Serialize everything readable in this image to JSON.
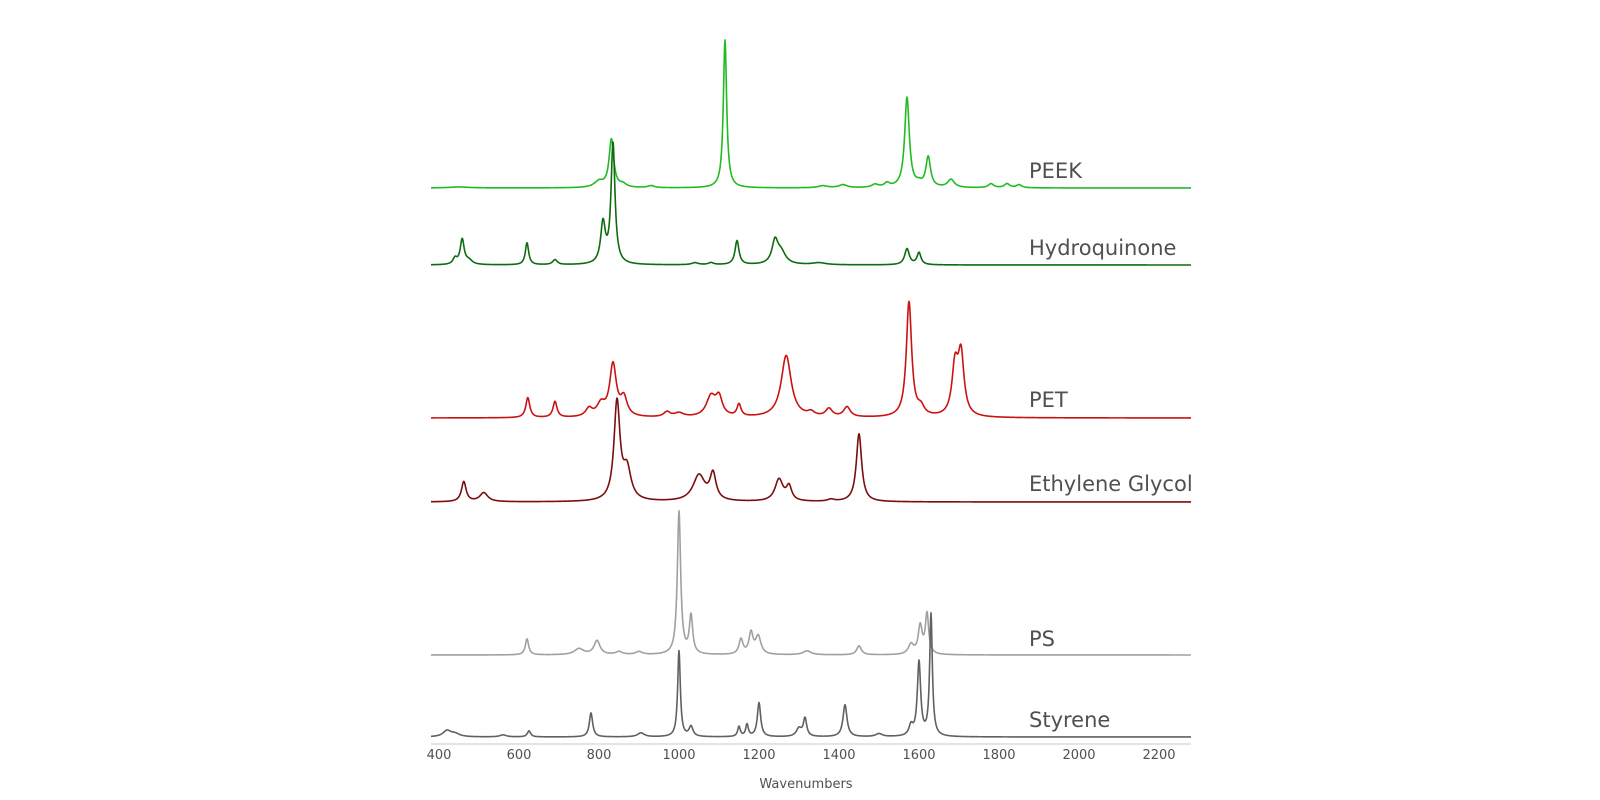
{
  "chart_data": {
    "type": "line",
    "title": "",
    "xlabel": "Wavenumbers",
    "ylabel": "",
    "xlim": [
      380,
      2280
    ],
    "xticks": [
      400,
      600,
      800,
      1000,
      1200,
      1400,
      1600,
      1800,
      2000,
      2200
    ],
    "grid": false,
    "legend": "none",
    "series": [
      {
        "name": "PEEK",
        "color": "#22bb22",
        "peaks": [
          [
            450,
            1,
            30
          ],
          [
            800,
            6,
            14
          ],
          [
            831,
            48,
            7
          ],
          [
            860,
            3,
            10
          ],
          [
            930,
            2,
            10
          ],
          [
            1115,
            148,
            5
          ],
          [
            1360,
            2,
            14
          ],
          [
            1410,
            3,
            12
          ],
          [
            1490,
            3,
            10
          ],
          [
            1520,
            4,
            8
          ],
          [
            1570,
            90,
            7
          ],
          [
            1600,
            3,
            8
          ],
          [
            1623,
            30,
            7
          ],
          [
            1680,
            8,
            10
          ],
          [
            1780,
            4,
            8
          ],
          [
            1820,
            4,
            8
          ],
          [
            1850,
            3,
            8
          ]
        ]
      },
      {
        "name": "Hydroquinone",
        "color": "#0f6b0f",
        "peaks": [
          [
            440,
            6,
            6
          ],
          [
            458,
            25,
            6
          ],
          [
            475,
            4,
            10
          ],
          [
            620,
            22,
            5
          ],
          [
            690,
            5,
            7
          ],
          [
            810,
            40,
            7
          ],
          [
            835,
            120,
            6
          ],
          [
            1040,
            2,
            10
          ],
          [
            1080,
            2,
            8
          ],
          [
            1145,
            24,
            6
          ],
          [
            1240,
            22,
            9
          ],
          [
            1255,
            12,
            14
          ],
          [
            1350,
            2,
            20
          ],
          [
            1570,
            16,
            7
          ],
          [
            1600,
            12,
            6
          ]
        ]
      },
      {
        "name": "PET",
        "color": "#cc1111",
        "peaks": [
          [
            622,
            20,
            6
          ],
          [
            690,
            16,
            6
          ],
          [
            775,
            8,
            10
          ],
          [
            805,
            12,
            12
          ],
          [
            835,
            52,
            10
          ],
          [
            862,
            18,
            10
          ],
          [
            970,
            5,
            10
          ],
          [
            1000,
            4,
            14
          ],
          [
            1080,
            20,
            14
          ],
          [
            1100,
            18,
            10
          ],
          [
            1150,
            12,
            6
          ],
          [
            1268,
            62,
            15
          ],
          [
            1330,
            4,
            10
          ],
          [
            1375,
            8,
            10
          ],
          [
            1420,
            10,
            10
          ],
          [
            1575,
            115,
            8
          ],
          [
            1605,
            8,
            10
          ],
          [
            1690,
            48,
            9
          ],
          [
            1705,
            60,
            9
          ]
        ]
      },
      {
        "name": "Ethylene Glycol",
        "color": "#7a0d0d",
        "peaks": [
          [
            462,
            20,
            7
          ],
          [
            512,
            9,
            12
          ],
          [
            845,
            98,
            9
          ],
          [
            870,
            30,
            12
          ],
          [
            1050,
            26,
            18
          ],
          [
            1085,
            26,
            9
          ],
          [
            1250,
            22,
            12
          ],
          [
            1275,
            14,
            8
          ],
          [
            1380,
            2,
            10
          ],
          [
            1450,
            68,
            8
          ]
        ]
      },
      {
        "name": "PS",
        "color": "#a0a0a0",
        "peaks": [
          [
            620,
            16,
            5
          ],
          [
            750,
            6,
            14
          ],
          [
            795,
            14,
            9
          ],
          [
            850,
            3,
            10
          ],
          [
            900,
            3,
            10
          ],
          [
            1000,
            143,
            5
          ],
          [
            1030,
            38,
            5
          ],
          [
            1155,
            15,
            6
          ],
          [
            1180,
            21,
            6
          ],
          [
            1198,
            18,
            8
          ],
          [
            1320,
            4,
            12
          ],
          [
            1450,
            9,
            7
          ],
          [
            1580,
            10,
            8
          ],
          [
            1603,
            28,
            6
          ],
          [
            1620,
            40,
            5
          ]
        ]
      },
      {
        "name": "Styrene",
        "color": "#606060",
        "peaks": [
          [
            420,
            6,
            12
          ],
          [
            440,
            3,
            14
          ],
          [
            560,
            2,
            10
          ],
          [
            625,
            6,
            5
          ],
          [
            780,
            24,
            5
          ],
          [
            905,
            4,
            10
          ],
          [
            1000,
            86,
            4
          ],
          [
            1030,
            10,
            6
          ],
          [
            1150,
            10,
            4
          ],
          [
            1170,
            12,
            4
          ],
          [
            1200,
            34,
            5
          ],
          [
            1300,
            8,
            8
          ],
          [
            1315,
            18,
            5
          ],
          [
            1415,
            32,
            6
          ],
          [
            1500,
            3,
            10
          ],
          [
            1580,
            10,
            6
          ],
          [
            1600,
            74,
            5
          ],
          [
            1630,
            122,
            4
          ]
        ]
      }
    ]
  }
}
